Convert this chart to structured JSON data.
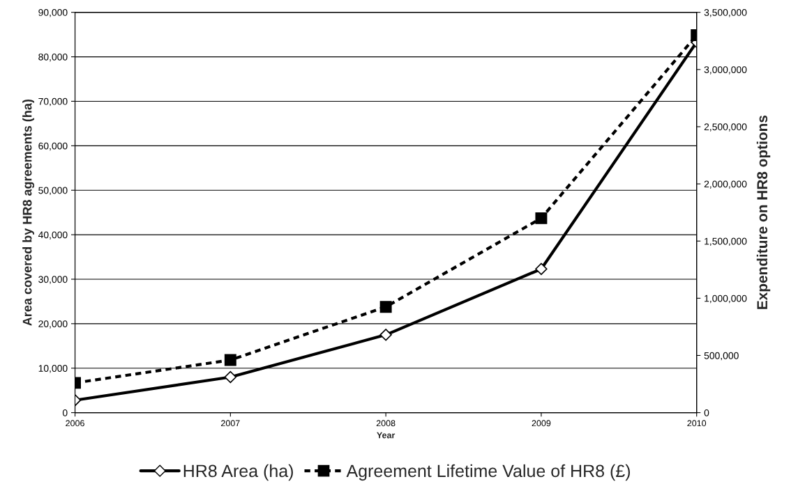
{
  "chart_data": {
    "type": "line",
    "xlabel": "Year",
    "ylabel": "Area covered by HR8 agreements (ha)",
    "y2label": "Expenditure on HR8 options",
    "x": [
      2006,
      2007,
      2008,
      2009,
      2010
    ],
    "series": [
      {
        "name": "HR8 Area (ha)",
        "color": "#000000",
        "values": [
          2800,
          8000,
          17500,
          32300,
          83300
        ],
        "marker": "diamond",
        "line_style": "solid"
      },
      {
        "name": "Agreement Lifetime Value of HR8 (£)",
        "color": "#000000",
        "values": [
          260000,
          460000,
          925000,
          1700000,
          3300000
        ],
        "marker": "square",
        "line_style": "dashed",
        "axis": "y2"
      }
    ],
    "xlim": [
      2006,
      2010
    ],
    "xticks": [
      2006,
      2007,
      2008,
      2009,
      2010
    ],
    "ylim": [
      0,
      90000
    ],
    "yticks": [
      {
        "value": 0,
        "label": "0"
      },
      {
        "value": 10000,
        "label": "10,000"
      },
      {
        "value": 20000,
        "label": "20,000"
      },
      {
        "value": 30000,
        "label": "30,000"
      },
      {
        "value": 40000,
        "label": "40,000"
      },
      {
        "value": 50000,
        "label": "50,000"
      },
      {
        "value": 60000,
        "label": "60,000"
      },
      {
        "value": 70000,
        "label": "70,000"
      },
      {
        "value": 80000,
        "label": "80,000"
      },
      {
        "value": 90000,
        "label": "90,000"
      }
    ],
    "y2lim": [
      0,
      3500000
    ],
    "y2ticks": [
      {
        "value": 0,
        "label": "0"
      },
      {
        "value": 500000,
        "label": "500,000"
      },
      {
        "value": 1000000,
        "label": "1,000,000"
      },
      {
        "value": 1500000,
        "label": "1,500,000"
      },
      {
        "value": 2000000,
        "label": "2,000,000"
      },
      {
        "value": 2500000,
        "label": "2,500,000"
      },
      {
        "value": 3000000,
        "label": "3,000,000"
      },
      {
        "value": 3500000,
        "label": "3,500,000"
      }
    ],
    "grid": "y",
    "legend": "bottom"
  }
}
